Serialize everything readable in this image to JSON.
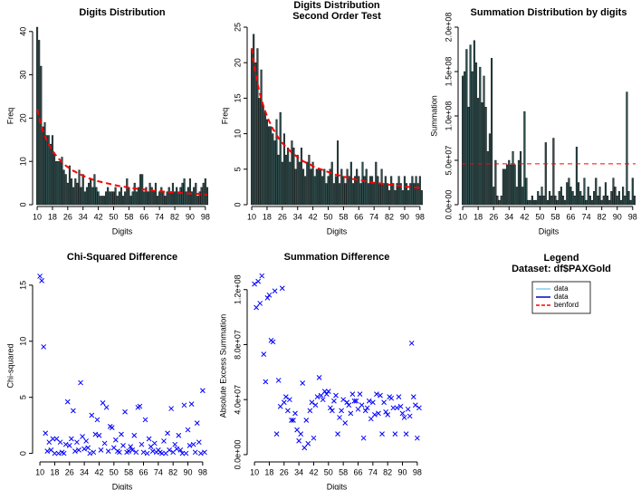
{
  "chart_data": [
    {
      "type": "bar",
      "title": "Digits Distribution",
      "xlabel": "Digits",
      "ylabel": "Freq",
      "x": [
        10,
        11,
        12,
        13,
        14,
        15,
        16,
        17,
        18,
        19,
        20,
        21,
        22,
        23,
        24,
        25,
        26,
        27,
        28,
        29,
        30,
        31,
        32,
        33,
        34,
        35,
        36,
        37,
        38,
        39,
        40,
        41,
        42,
        43,
        44,
        45,
        46,
        47,
        48,
        49,
        50,
        51,
        52,
        53,
        54,
        55,
        56,
        57,
        58,
        59,
        60,
        61,
        62,
        63,
        64,
        65,
        66,
        67,
        68,
        69,
        70,
        71,
        72,
        73,
        74,
        75,
        76,
        77,
        78,
        79,
        80,
        81,
        82,
        83,
        84,
        85,
        86,
        87,
        88,
        89,
        90,
        91,
        92,
        93,
        94,
        95,
        96,
        97,
        98,
        99
      ],
      "values": [
        41,
        38,
        32,
        18,
        19,
        16,
        16,
        14,
        16,
        12,
        10,
        10,
        10,
        11,
        8,
        7,
        5,
        9,
        6,
        4,
        6,
        5,
        8,
        4,
        7,
        3,
        4,
        5,
        6,
        4,
        7,
        4,
        3,
        2,
        2,
        2,
        3,
        4,
        3,
        3,
        3,
        4,
        2,
        3,
        4,
        2,
        3,
        6,
        4,
        2,
        3,
        5,
        3,
        4,
        7,
        7,
        3,
        4,
        3,
        5,
        4,
        3,
        5,
        2,
        3,
        4,
        3,
        2,
        3,
        4,
        3,
        5,
        3,
        4,
        3,
        4,
        5,
        6,
        3,
        4,
        6,
        3,
        4,
        5,
        2,
        3,
        4,
        5,
        6,
        4
      ],
      "color": "#2f4f4f",
      "expected": {
        "color": "#ff0000",
        "values": [
          22.0,
          20.1,
          18.5,
          17.1,
          15.9,
          14.9,
          14.0,
          13.2,
          12.5,
          11.8,
          11.3,
          10.7,
          10.3,
          9.8,
          9.4,
          9.0,
          8.7,
          8.4,
          8.1,
          7.8,
          7.6,
          7.3,
          7.1,
          6.9,
          6.7,
          6.5,
          6.3,
          6.1,
          6.0,
          5.8,
          5.7,
          5.6,
          5.4,
          5.3,
          5.2,
          5.1,
          5.0,
          4.9,
          4.8,
          4.7,
          4.6,
          4.5,
          4.4,
          4.3,
          4.2,
          4.2,
          4.1,
          4.0,
          3.9,
          3.9,
          3.8,
          3.8,
          3.7,
          3.6,
          3.6,
          3.5,
          3.5,
          3.4,
          3.4,
          3.3,
          3.3,
          3.2,
          3.2,
          3.1,
          3.1,
          3.1,
          3.0,
          3.0,
          3.0,
          2.9,
          2.9,
          2.9,
          2.8,
          2.8,
          2.8,
          2.7,
          2.7,
          2.7,
          2.6,
          2.6,
          2.6,
          2.5,
          2.5,
          2.5,
          2.5,
          2.4,
          2.4,
          2.4,
          2.3,
          2.3
        ]
      },
      "xlim": [
        9.5,
        99.5
      ],
      "xticks": [
        10,
        18,
        26,
        34,
        42,
        50,
        58,
        66,
        74,
        82,
        90,
        98
      ],
      "ylim": [
        0,
        41
      ],
      "yticks": [
        0,
        10,
        20,
        30,
        40
      ]
    },
    {
      "type": "bar",
      "title": "Digits Distribution",
      "subtitle": "Second Order Test",
      "xlabel": "Digits",
      "ylabel": "Freq",
      "x": [
        10,
        11,
        12,
        13,
        14,
        15,
        16,
        17,
        18,
        19,
        20,
        21,
        22,
        23,
        24,
        25,
        26,
        27,
        28,
        29,
        30,
        31,
        32,
        33,
        34,
        35,
        36,
        37,
        38,
        39,
        40,
        41,
        42,
        43,
        44,
        45,
        46,
        47,
        48,
        49,
        50,
        51,
        52,
        53,
        54,
        55,
        56,
        57,
        58,
        59,
        60,
        61,
        62,
        63,
        64,
        65,
        66,
        67,
        68,
        69,
        70,
        71,
        72,
        73,
        74,
        75,
        76,
        77,
        78,
        79,
        80,
        81,
        82,
        83,
        84,
        85,
        86,
        87,
        88,
        89,
        90,
        91,
        92,
        93,
        94,
        95,
        96,
        97,
        98,
        99
      ],
      "values": [
        22,
        24,
        20,
        22,
        15,
        19,
        14,
        13,
        12,
        11,
        11,
        10,
        9,
        12,
        7,
        13,
        6,
        10,
        7,
        8,
        6,
        9,
        8,
        5,
        7,
        6,
        8,
        5,
        4,
        6,
        7,
        5,
        6,
        4,
        5,
        5,
        5,
        4,
        5,
        3,
        4,
        5,
        6,
        3,
        4,
        9,
        3,
        5,
        4,
        3,
        5,
        4,
        6,
        3,
        4,
        5,
        4,
        3,
        6,
        4,
        5,
        3,
        4,
        4,
        3,
        6,
        4,
        3,
        5,
        3,
        4,
        3,
        2,
        4,
        3,
        2,
        3,
        4,
        3,
        2,
        4,
        3,
        2,
        3,
        4,
        3,
        4,
        3,
        4,
        2
      ],
      "color": "#2f4f4f",
      "expected": {
        "color": "#ff0000",
        "values": [
          22.0,
          20.1,
          18.5,
          17.1,
          15.9,
          14.9,
          14.0,
          13.2,
          12.5,
          11.8,
          11.3,
          10.7,
          10.3,
          9.8,
          9.4,
          9.0,
          8.7,
          8.4,
          8.1,
          7.8,
          7.6,
          7.3,
          7.1,
          6.9,
          6.7,
          6.5,
          6.3,
          6.1,
          6.0,
          5.8,
          5.7,
          5.6,
          5.4,
          5.3,
          5.2,
          5.1,
          5.0,
          4.9,
          4.8,
          4.7,
          4.6,
          4.5,
          4.4,
          4.3,
          4.2,
          4.2,
          4.1,
          4.0,
          3.9,
          3.9,
          3.8,
          3.8,
          3.7,
          3.6,
          3.6,
          3.5,
          3.5,
          3.4,
          3.4,
          3.3,
          3.3,
          3.2,
          3.2,
          3.1,
          3.1,
          3.1,
          3.0,
          3.0,
          3.0,
          2.9,
          2.9,
          2.9,
          2.8,
          2.8,
          2.8,
          2.7,
          2.7,
          2.7,
          2.6,
          2.6,
          2.6,
          2.5,
          2.5,
          2.5,
          2.5,
          2.4,
          2.4,
          2.4,
          2.3,
          2.3
        ]
      },
      "xlim": [
        9.5,
        99.5
      ],
      "xticks": [
        10,
        18,
        26,
        34,
        42,
        50,
        58,
        66,
        74,
        82,
        90,
        98
      ],
      "ylim": [
        0,
        25
      ],
      "yticks": [
        0,
        5,
        10,
        15,
        20,
        25
      ]
    },
    {
      "type": "bar",
      "title": "Summation Distribution by digits",
      "xlabel": "Digits",
      "ylabel": "Summation",
      "x": [
        10,
        11,
        12,
        13,
        14,
        15,
        16,
        17,
        18,
        19,
        20,
        21,
        22,
        23,
        24,
        25,
        26,
        27,
        28,
        29,
        30,
        31,
        32,
        33,
        34,
        35,
        36,
        37,
        38,
        39,
        40,
        41,
        42,
        43,
        44,
        45,
        46,
        47,
        48,
        49,
        50,
        51,
        52,
        53,
        54,
        55,
        56,
        57,
        58,
        59,
        60,
        61,
        62,
        63,
        64,
        65,
        66,
        67,
        68,
        69,
        70,
        71,
        72,
        73,
        74,
        75,
        76,
        77,
        78,
        79,
        80,
        81,
        82,
        83,
        84,
        85,
        86,
        87,
        88,
        89,
        90,
        91,
        92,
        93,
        94,
        95,
        96,
        97,
        98,
        99
      ],
      "values": [
        145000000.0,
        150000000.0,
        175000000.0,
        110000000.0,
        180000000.0,
        150000000.0,
        185000000.0,
        160000000.0,
        120000000.0,
        155000000.0,
        115000000.0,
        145000000.0,
        110000000.0,
        60000000.0,
        80000000.0,
        165000000.0,
        20000000.0,
        50000000.0,
        10000000.0,
        5000000.0,
        10000000.0,
        40000000.0,
        40000000.0,
        45000000.0,
        50000000.0,
        45000000.0,
        60000000.0,
        45000000.0,
        20000000.0,
        50000000.0,
        60000000.0,
        20000000.0,
        105000000.0,
        30000000.0,
        5000000.0,
        5000000.0,
        10000000.0,
        5000000.0,
        5000000.0,
        15000000.0,
        10000000.0,
        20000000.0,
        10000000.0,
        70000000.0,
        5000000.0,
        15000000.0,
        10000000.0,
        75000000.0,
        10000000.0,
        5000000.0,
        15000000.0,
        20000000.0,
        10000000.0,
        5000000.0,
        25000000.0,
        30000000.0,
        20000000.0,
        15000000.0,
        10000000.0,
        65000000.0,
        25000000.0,
        15000000.0,
        10000000.0,
        30000000.0,
        5000000.0,
        20000000.0,
        10000000.0,
        5000000.0,
        15000000.0,
        30000000.0,
        10000000.0,
        20000000.0,
        5000000.0,
        10000000.0,
        25000000.0,
        10000000.0,
        5000000.0,
        15000000.0,
        30000000.0,
        20000000.0,
        10000000.0,
        15000000.0,
        5000000.0,
        20000000.0,
        10000000.0,
        127000000.0,
        15000000.0,
        5000000.0,
        30000000.0,
        10000000.0
      ],
      "color": "#2f4f4f",
      "reference": {
        "value": 46000000.0,
        "color": "#ff0000"
      },
      "xlim": [
        9.5,
        99.5
      ],
      "xticks": [
        10,
        18,
        26,
        34,
        42,
        50,
        58,
        66,
        74,
        82,
        90,
        98
      ],
      "ylim": [
        0,
        200000000.0
      ],
      "yticks": [
        {
          "value": 0,
          "label": "0.0e+00"
        },
        {
          "value": 50000000.0,
          "label": "5.0e+07"
        },
        {
          "value": 100000000.0,
          "label": "1.0e+08"
        },
        {
          "value": 150000000.0,
          "label": "1.5e+08"
        },
        {
          "value": 200000000.0,
          "label": "2.0e+08"
        }
      ]
    },
    {
      "type": "scatter",
      "title": "Chi-Squared Difference",
      "xlabel": "Digits",
      "ylabel": "Chi-squared",
      "x": [
        10,
        11,
        12,
        13,
        14,
        15,
        16,
        17,
        18,
        19,
        20,
        21,
        22,
        23,
        24,
        25,
        26,
        27,
        28,
        29,
        30,
        31,
        32,
        33,
        34,
        35,
        36,
        37,
        38,
        39,
        40,
        41,
        42,
        43,
        44,
        45,
        46,
        47,
        48,
        49,
        50,
        51,
        52,
        53,
        54,
        55,
        56,
        57,
        58,
        59,
        60,
        61,
        62,
        63,
        64,
        65,
        66,
        67,
        68,
        69,
        70,
        71,
        72,
        73,
        74,
        75,
        76,
        77,
        78,
        79,
        80,
        81,
        82,
        83,
        84,
        85,
        86,
        87,
        88,
        89,
        90,
        91,
        92,
        93,
        94,
        95,
        96,
        97,
        98,
        99
      ],
      "values": [
        15.8,
        15.4,
        9.5,
        1.8,
        0.2,
        1.0,
        0.3,
        1.3,
        0.0,
        1.3,
        0.0,
        1.0,
        0.1,
        0.0,
        0.8,
        4.6,
        0.7,
        1.3,
        3.8,
        0.2,
        1.0,
        0.3,
        6.3,
        1.5,
        0.4,
        1.1,
        0.5,
        0.0,
        3.4,
        0.1,
        1.7,
        3.0,
        1.6,
        0.3,
        4.5,
        0.9,
        4.1,
        0.2,
        2.4,
        2.3,
        0.5,
        1.2,
        0.2,
        0.1,
        1.7,
        0.7,
        3.7,
        0.1,
        0.2,
        0.6,
        0.3,
        1.6,
        0.1,
        4.1,
        4.2,
        0.8,
        0.1,
        3.0,
        0.0,
        1.3,
        0.6,
        0.2,
        0.9,
        0.1,
        0.3,
        0.1,
        0.0,
        1.1,
        0.0,
        1.8,
        0.3,
        4.0,
        0.1,
        0.8,
        0.4,
        1.6,
        0.3,
        0.0,
        4.3,
        0.0,
        2.1,
        0.7,
        4.4,
        0.8,
        0.1,
        2.7,
        1.0,
        0.0,
        5.6,
        0.1
      ],
      "color": "#0000ff",
      "xlim": [
        8,
        101
      ],
      "xticks": [
        10,
        18,
        26,
        34,
        42,
        50,
        58,
        66,
        74,
        82,
        90,
        98
      ],
      "ylim": [
        -0.6,
        16.2
      ],
      "yticks": [
        0,
        5,
        10,
        15
      ]
    },
    {
      "type": "scatter",
      "title": "Summation Difference",
      "xlabel": "Digits",
      "ylabel": "Absolute Excess Summation",
      "x": [
        10,
        11,
        12,
        13,
        14,
        15,
        16,
        17,
        18,
        19,
        20,
        21,
        22,
        23,
        24,
        25,
        26,
        27,
        28,
        29,
        30,
        31,
        32,
        33,
        34,
        35,
        36,
        37,
        38,
        39,
        40,
        41,
        42,
        43,
        44,
        45,
        46,
        47,
        48,
        49,
        50,
        51,
        52,
        53,
        54,
        55,
        56,
        57,
        58,
        59,
        60,
        61,
        62,
        63,
        64,
        65,
        66,
        67,
        68,
        69,
        70,
        71,
        72,
        73,
        74,
        75,
        76,
        77,
        78,
        79,
        80,
        81,
        82,
        83,
        84,
        85,
        86,
        87,
        88,
        89,
        90,
        91,
        92,
        93,
        94,
        95,
        96,
        97,
        98,
        99
      ],
      "values": [
        124000000.0,
        107000000.0,
        126000000.0,
        110000000.0,
        130000000.0,
        73000000.0,
        53000000.0,
        114000000.0,
        116000000.0,
        83000000.0,
        82000000.0,
        119000000.0,
        15000000.0,
        54000000.0,
        35000000.0,
        121000000.0,
        38000000.0,
        42000000.0,
        32000000.0,
        40000000.0,
        25000000.0,
        25000000.0,
        30000000.0,
        18000000.0,
        10000000.0,
        15000000.0,
        52000000.0,
        5000000.0,
        25000000.0,
        8000000.0,
        32000000.0,
        38000000.0,
        12000000.0,
        36000000.0,
        42000000.0,
        56000000.0,
        43000000.0,
        40000000.0,
        46000000.0,
        44000000.0,
        46000000.0,
        34000000.0,
        32000000.0,
        39000000.0,
        43000000.0,
        15000000.0,
        27000000.0,
        32000000.0,
        40000000.0,
        23000000.0,
        38000000.0,
        36000000.0,
        30000000.0,
        44000000.0,
        39000000.0,
        39000000.0,
        33000000.0,
        44000000.0,
        36000000.0,
        12000000.0,
        32000000.0,
        34000000.0,
        39000000.0,
        26000000.0,
        38000000.0,
        29000000.0,
        44000000.0,
        30000000.0,
        43000000.0,
        15000000.0,
        38000000.0,
        31000000.0,
        29000000.0,
        42000000.0,
        41000000.0,
        34000000.0,
        15000000.0,
        34000000.0,
        42000000.0,
        35000000.0,
        30000000.0,
        27000000.0,
        15000000.0,
        33000000.0,
        28000000.0,
        81000000.0,
        42000000.0,
        36000000.0,
        12000000.0,
        34000000.0
      ],
      "color": "#0000ff",
      "xlim": [
        8,
        101
      ],
      "xticks": [
        10,
        18,
        26,
        34,
        42,
        50,
        58,
        66,
        74,
        82,
        90,
        98
      ],
      "ylim": [
        -4000000.0,
        133000000.0
      ],
      "yticks": [
        {
          "value": 0,
          "label": "0.0e+00"
        },
        {
          "value": 40000000.0,
          "label": "4.0e+07"
        },
        {
          "value": 80000000.0,
          "label": "8.0e+07"
        },
        {
          "value": 120000000.0,
          "label": "1.2e+08"
        }
      ]
    }
  ],
  "legend": {
    "title": "Legend",
    "subtitle": "Dataset: df$PAXGold",
    "items": [
      {
        "name": "data",
        "color": "#87ceeb",
        "dashed": false
      },
      {
        "name": "data",
        "color": "#0000cd",
        "dashed": false
      },
      {
        "name": "benford",
        "color": "#ff0000",
        "dashed": true
      }
    ]
  }
}
